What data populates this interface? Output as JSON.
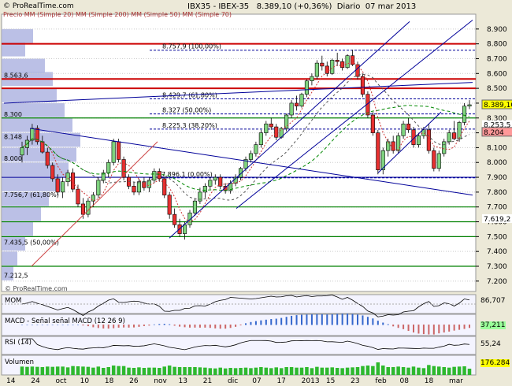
{
  "header": {
    "site": "© ProRealTime.com",
    "symbol_line": "IBX35 - IBEX-35",
    "last_price": "8.389,10 (+0,36%)",
    "timeframe": "Diario",
    "date": "07 mar 2013",
    "legend": "Precio  MM (Simple 20)  MM (Simple 200)  MM (Simple 50)  MM (Simple 70)"
  },
  "watermark": "© ProRealTime.com",
  "indicators": {
    "mom": {
      "label": "MOM",
      "value": "86,707"
    },
    "macd": {
      "label": "MACD - Señal señal  MACD (12 26 9)",
      "value": "37,211"
    },
    "rsi": {
      "label": "RSI (14)",
      "value": "55,24"
    },
    "volume": {
      "label": "Volumen",
      "value": "176.284"
    }
  },
  "colors": {
    "background": "#ffffff",
    "panel_bg": "#f4f4ff",
    "frame": "#ece9d8",
    "up_candle": "#7fd37f",
    "down_candle": "#e83030",
    "volume_bar": "#2eb82e",
    "volume_profile": "#aab0e0",
    "green_line": "#008000",
    "red_line": "#cc0000",
    "blue_line": "#000099",
    "price_box": "#ffff00",
    "price_box_red": "#ff9999",
    "price_box_green": "#99ff99"
  },
  "chart_data": {
    "type": "candlestick",
    "y_ticks": [
      "8.900",
      "8.800",
      "8.700",
      "8.600",
      "8.500",
      "8.400",
      "8.300",
      "8.200",
      "8.100",
      "8.000",
      "7.900",
      "7.800",
      "7.700",
      "7.600",
      "7.500",
      "7.400",
      "7.300",
      "7.200"
    ],
    "ylim": [
      7130,
      9000
    ],
    "x_ticks": [
      "14",
      "24",
      "oct",
      "10",
      "18",
      "26",
      "nov",
      "13",
      "21",
      "dic",
      "07",
      "17",
      "2013",
      "15",
      "23",
      "feb",
      "08",
      "18",
      "mar"
    ],
    "price_labels": [
      {
        "label": "8.389,10",
        "value": 8389,
        "style": "yellow"
      },
      {
        "label": "8.253,5",
        "value": 8253,
        "style": "plain"
      },
      {
        "label": "8.204",
        "value": 8204,
        "style": "red"
      },
      {
        "label": "7.619,2",
        "value": 7619,
        "style": "plain"
      }
    ],
    "fib_labels": [
      {
        "label": "8.757,9 (100,00%)",
        "value": 8757
      },
      {
        "label": "8.429,7 (61,80%)",
        "value": 8429
      },
      {
        "label": "8.327 (50,00%)",
        "value": 8327
      },
      {
        "label": "8.225,3 (38,20%)",
        "value": 8225
      },
      {
        "label": "7.896,1 (0,00%)",
        "value": 7896
      }
    ],
    "left_labels": [
      {
        "label": "8.563,6",
        "value": 8563
      },
      {
        "label": "8.300",
        "value": 8300
      },
      {
        "label": "8.148",
        "value": 8148
      },
      {
        "label": "8.000",
        "value": 8000
      },
      {
        "label": "7.756,7 (61,80%)",
        "value": 7756
      },
      {
        "label": "7.435,5 (50,00%)",
        "value": 7435
      },
      {
        "label": "7.212,5",
        "value": 7212
      }
    ],
    "horizontal_levels": [
      {
        "value": 8800,
        "color": "red"
      },
      {
        "value": 8563,
        "color": "red"
      },
      {
        "value": 8500,
        "color": "red"
      },
      {
        "value": 8300,
        "color": "green"
      },
      {
        "value": 7900,
        "color": "blue"
      },
      {
        "value": 7700,
        "color": "green"
      },
      {
        "value": 7600,
        "color": "green"
      },
      {
        "value": 7500,
        "color": "green"
      },
      {
        "value": 7300,
        "color": "green"
      }
    ],
    "candles": [
      [
        8050,
        8140,
        8000,
        8100
      ],
      [
        8100,
        8180,
        8050,
        8150
      ],
      [
        8150,
        8260,
        8120,
        8230
      ],
      [
        8230,
        8250,
        8120,
        8140
      ],
      [
        8140,
        8180,
        8060,
        8070
      ],
      [
        8070,
        8100,
        7960,
        7980
      ],
      [
        7980,
        8000,
        7870,
        7890
      ],
      [
        7890,
        7920,
        7780,
        7800
      ],
      [
        7800,
        7900,
        7760,
        7870
      ],
      [
        7870,
        7950,
        7840,
        7930
      ],
      [
        7930,
        7960,
        7800,
        7820
      ],
      [
        7820,
        7850,
        7700,
        7720
      ],
      [
        7720,
        7760,
        7620,
        7650
      ],
      [
        7650,
        7760,
        7630,
        7740
      ],
      [
        7740,
        7800,
        7700,
        7780
      ],
      [
        7780,
        7900,
        7760,
        7880
      ],
      [
        7880,
        7950,
        7860,
        7930
      ],
      [
        7930,
        8020,
        7900,
        8000
      ],
      [
        8000,
        8160,
        7980,
        8140
      ],
      [
        8140,
        8160,
        8000,
        8020
      ],
      [
        8020,
        8040,
        7880,
        7900
      ],
      [
        7900,
        7920,
        7820,
        7840
      ],
      [
        7840,
        7870,
        7780,
        7800
      ],
      [
        7800,
        7890,
        7780,
        7870
      ],
      [
        7870,
        7900,
        7810,
        7830
      ],
      [
        7830,
        7900,
        7800,
        7880
      ],
      [
        7880,
        7960,
        7860,
        7940
      ],
      [
        7940,
        7960,
        7870,
        7890
      ],
      [
        7890,
        7900,
        7760,
        7780
      ],
      [
        7780,
        7800,
        7620,
        7650
      ],
      [
        7650,
        7690,
        7560,
        7580
      ],
      [
        7580,
        7620,
        7500,
        7520
      ],
      [
        7520,
        7600,
        7480,
        7580
      ],
      [
        7580,
        7680,
        7560,
        7660
      ],
      [
        7660,
        7760,
        7640,
        7740
      ],
      [
        7740,
        7830,
        7720,
        7800
      ],
      [
        7800,
        7860,
        7760,
        7840
      ],
      [
        7840,
        7900,
        7820,
        7880
      ],
      [
        7880,
        7920,
        7850,
        7900
      ],
      [
        7900,
        7920,
        7820,
        7840
      ],
      [
        7840,
        7860,
        7790,
        7810
      ],
      [
        7810,
        7880,
        7790,
        7860
      ],
      [
        7860,
        7920,
        7840,
        7900
      ],
      [
        7900,
        7970,
        7880,
        7960
      ],
      [
        7960,
        8040,
        7940,
        8020
      ],
      [
        8020,
        8080,
        8000,
        8060
      ],
      [
        8060,
        8140,
        8040,
        8120
      ],
      [
        8120,
        8220,
        8100,
        8200
      ],
      [
        8200,
        8280,
        8180,
        8260
      ],
      [
        8260,
        8300,
        8220,
        8240
      ],
      [
        8240,
        8260,
        8150,
        8170
      ],
      [
        8170,
        8240,
        8160,
        8230
      ],
      [
        8230,
        8330,
        8210,
        8320
      ],
      [
        8320,
        8420,
        8300,
        8400
      ],
      [
        8400,
        8450,
        8350,
        8380
      ],
      [
        8380,
        8470,
        8370,
        8460
      ],
      [
        8460,
        8560,
        8440,
        8550
      ],
      [
        8550,
        8600,
        8520,
        8580
      ],
      [
        8580,
        8690,
        8560,
        8670
      ],
      [
        8670,
        8720,
        8620,
        8650
      ],
      [
        8650,
        8680,
        8580,
        8600
      ],
      [
        8600,
        8700,
        8590,
        8690
      ],
      [
        8690,
        8740,
        8650,
        8680
      ],
      [
        8680,
        8700,
        8620,
        8640
      ],
      [
        8640,
        8730,
        8630,
        8720
      ],
      [
        8720,
        8760,
        8650,
        8660
      ],
      [
        8660,
        8680,
        8560,
        8580
      ],
      [
        8580,
        8600,
        8440,
        8460
      ],
      [
        8460,
        8480,
        8300,
        8320
      ],
      [
        8320,
        8340,
        8180,
        8200
      ],
      [
        8200,
        8220,
        7920,
        7950
      ],
      [
        7950,
        8100,
        7920,
        8080
      ],
      [
        8080,
        8160,
        8040,
        8140
      ],
      [
        8140,
        8180,
        8060,
        8080
      ],
      [
        8080,
        8200,
        8060,
        8180
      ],
      [
        8180,
        8280,
        8160,
        8260
      ],
      [
        8260,
        8300,
        8200,
        8220
      ],
      [
        8220,
        8240,
        8100,
        8120
      ],
      [
        8120,
        8200,
        8100,
        8180
      ],
      [
        8180,
        8240,
        8160,
        8220
      ],
      [
        8220,
        8260,
        8060,
        8080
      ],
      [
        8080,
        8100,
        7940,
        7960
      ],
      [
        7960,
        8080,
        7940,
        8060
      ],
      [
        8060,
        8160,
        8040,
        8140
      ],
      [
        8140,
        8220,
        8120,
        8200
      ],
      [
        8200,
        8280,
        8150,
        8160
      ],
      [
        8160,
        8280,
        8140,
        8270
      ],
      [
        8270,
        8400,
        8250,
        8380
      ],
      [
        8380,
        8420,
        8360,
        8389
      ]
    ]
  }
}
